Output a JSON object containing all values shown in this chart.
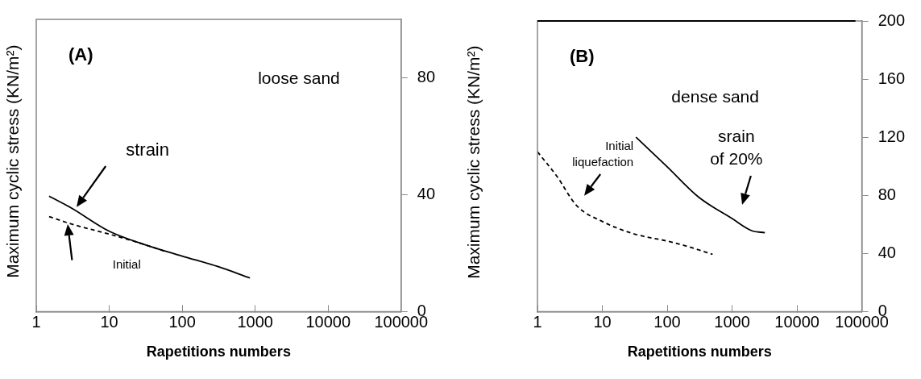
{
  "chart_data": [
    {
      "type": "line",
      "title": "(A)",
      "xlabel": "Rapetitions numbers",
      "ylabel": "Maximum cyclic stress (KN/m²)",
      "log": "x",
      "xlim": [
        1,
        100000
      ],
      "xticks": [
        1,
        10,
        100,
        1000,
        10000,
        100000
      ],
      "ylim": [
        0,
        100
      ],
      "yticks": [
        0,
        40,
        80
      ],
      "grid": false,
      "legend": false,
      "marker": "none",
      "annotations": [
        "loose sand",
        "strain",
        "Initial"
      ],
      "series": [
        {
          "color": "#000000",
          "line_style": "solid",
          "x": [
            1.5,
            3,
            10,
            30,
            100,
            300,
            850
          ],
          "values": [
            39.5,
            35.5,
            27.5,
            23,
            19,
            15.5,
            11.5
          ]
        },
        {
          "color": "#000000",
          "line_style": "dashed",
          "x": [
            1.5,
            3,
            10,
            30,
            60
          ],
          "values": [
            32.5,
            30,
            26.5,
            23,
            20.5
          ]
        }
      ]
    },
    {
      "type": "line",
      "title": "(B)",
      "xlabel": "Rapetitions numbers",
      "ylabel": "Maximum cyclic stress (KN/m²)",
      "log": "x",
      "xlim": [
        1,
        100000
      ],
      "xticks": [
        1,
        10,
        100,
        1000,
        10000,
        100000
      ],
      "ylim": [
        0,
        200
      ],
      "yticks": [
        0,
        40,
        80,
        120,
        160,
        200
      ],
      "grid": false,
      "legend": false,
      "marker": "none",
      "annotations": [
        "dense sand",
        "Initial\nliquefaction",
        "srain\nof 20%"
      ],
      "series": [
        {
          "color": "#000000",
          "line_style": "solid",
          "x": [
            33,
            100,
            300,
            1000,
            2000,
            3200
          ],
          "values": [
            120,
            99.6,
            79,
            64,
            55.7,
            54.3
          ]
        },
        {
          "color": "#000000",
          "line_style": "dashed",
          "x": [
            1,
            2,
            4,
            10,
            30,
            100,
            200,
            500
          ],
          "values": [
            110,
            93,
            73,
            62,
            53.6,
            48.5,
            45,
            39.4
          ]
        }
      ]
    }
  ]
}
